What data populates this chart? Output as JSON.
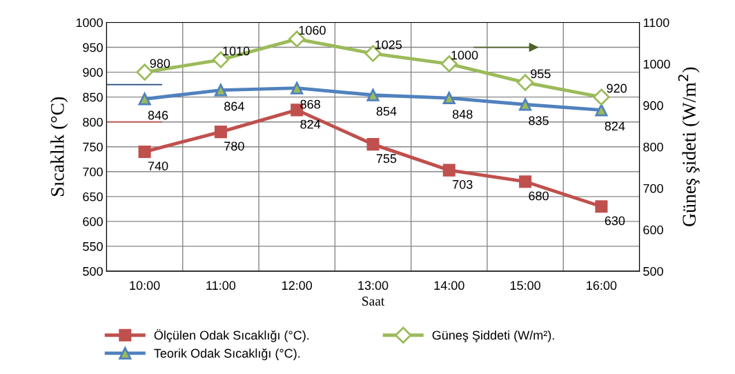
{
  "chart_data": {
    "type": "line",
    "xlabel": "Saat",
    "ylabel": "Sıcaklık (°C)",
    "y2label": "Güneş şideti (W/m$^{2}$)",
    "categories": [
      "10:00",
      "11:00",
      "12:00",
      "13:00",
      "14:00",
      "15:00",
      "16:00"
    ],
    "series": [
      {
        "name": "Ölçülen Odak Sıcaklığı (°C).",
        "color": "#c0504d",
        "marker": "square",
        "values": [
          740,
          780,
          824,
          755,
          703,
          680,
          630
        ]
      },
      {
        "name": "Teorik Odak Sıcaklığı (°C).",
        "color": "#4f81bd",
        "marker": "triangle",
        "values": [
          846,
          864,
          868,
          854,
          848,
          835,
          824
        ]
      },
      {
        "name": "Güneş Şiddeti (W/m²).",
        "color": "#9bbb59",
        "marker": "diamond",
        "axis": "y2",
        "values": [
          980,
          1010,
          1060,
          1025,
          1000,
          955,
          920
        ]
      }
    ],
    "ylim": [
      500,
      1000
    ],
    "yticks": [
      500,
      550,
      600,
      650,
      700,
      750,
      800,
      850,
      900,
      950,
      1000
    ],
    "y2lim": [
      500,
      1100
    ],
    "y2ticks": [
      500,
      600,
      700,
      800,
      900,
      1000,
      1100
    ],
    "grid": true,
    "legend": "bottom",
    "data_labels": true,
    "line_style": "solid"
  }
}
